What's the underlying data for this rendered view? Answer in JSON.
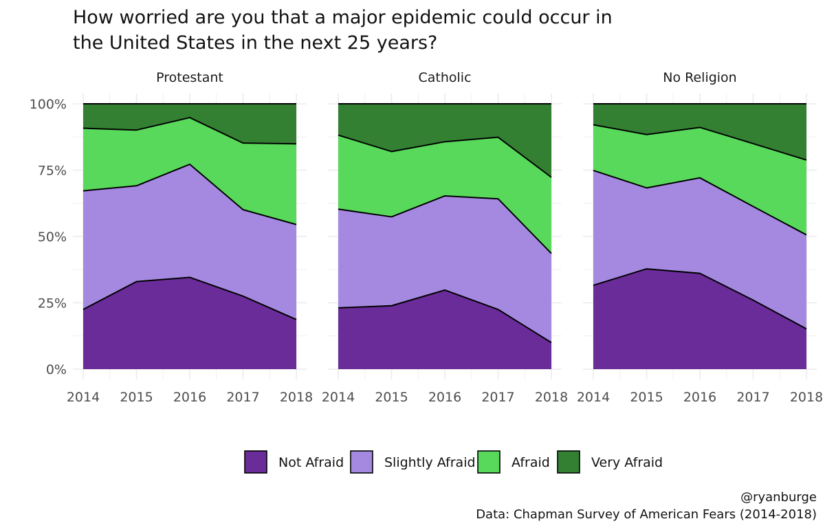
{
  "title_lines": [
    "How worried are you that a major epidemic could occur in",
    "the United States in the next 25 years?"
  ],
  "caption_lines": [
    "@ryanburge",
    "Data: Chapman Survey of American Fears (2014-2018)"
  ],
  "colors": {
    "Not Afraid": "#6a2c98",
    "Slightly Afraid": "#a589e1",
    "Afraid": "#59d95b",
    "Very Afraid": "#338033",
    "grid": "#ebebeb",
    "line": "#000000"
  },
  "chart_data": {
    "type": "area",
    "stacked": true,
    "facets": [
      "Protestant",
      "Catholic",
      "No Religion"
    ],
    "x": [
      2014,
      2015,
      2016,
      2017,
      2018
    ],
    "x_ticks": [
      "2014",
      "2015",
      "2016",
      "2017",
      "2018"
    ],
    "y_ticks": [
      "0%",
      "25%",
      "50%",
      "75%",
      "100%"
    ],
    "ylim": [
      0,
      1
    ],
    "grid": true,
    "legend_position": "bottom",
    "series_order": [
      "Not Afraid",
      "Slightly Afraid",
      "Afraid",
      "Very Afraid"
    ],
    "panels": [
      {
        "facet": "Protestant",
        "series": [
          {
            "name": "Not Afraid",
            "values": [
              0.225,
              0.33,
              0.346,
              0.275,
              0.187
            ]
          },
          {
            "name": "Slightly Afraid",
            "values": [
              0.447,
              0.361,
              0.426,
              0.326,
              0.358
            ]
          },
          {
            "name": "Afraid",
            "values": [
              0.236,
              0.21,
              0.176,
              0.251,
              0.304
            ]
          },
          {
            "name": "Very Afraid",
            "values": [
              0.092,
              0.099,
              0.052,
              0.148,
              0.151
            ]
          }
        ]
      },
      {
        "facet": "Catholic",
        "series": [
          {
            "name": "Not Afraid",
            "values": [
              0.231,
              0.239,
              0.298,
              0.225,
              0.1
            ]
          },
          {
            "name": "Slightly Afraid",
            "values": [
              0.372,
              0.335,
              0.355,
              0.417,
              0.336
            ]
          },
          {
            "name": "Afraid",
            "values": [
              0.279,
              0.246,
              0.204,
              0.232,
              0.287
            ]
          },
          {
            "name": "Very Afraid",
            "values": [
              0.118,
              0.18,
              0.143,
              0.126,
              0.277
            ]
          }
        ]
      },
      {
        "facet": "No Religion",
        "series": [
          {
            "name": "Not Afraid",
            "values": [
              0.316,
              0.378,
              0.361,
              0.26,
              0.152
            ]
          },
          {
            "name": "Slightly Afraid",
            "values": [
              0.433,
              0.305,
              0.36,
              0.353,
              0.354
            ]
          },
          {
            "name": "Afraid",
            "values": [
              0.172,
              0.201,
              0.19,
              0.237,
              0.282
            ]
          },
          {
            "name": "Very Afraid",
            "values": [
              0.079,
              0.116,
              0.089,
              0.15,
              0.212
            ]
          }
        ]
      }
    ]
  }
}
